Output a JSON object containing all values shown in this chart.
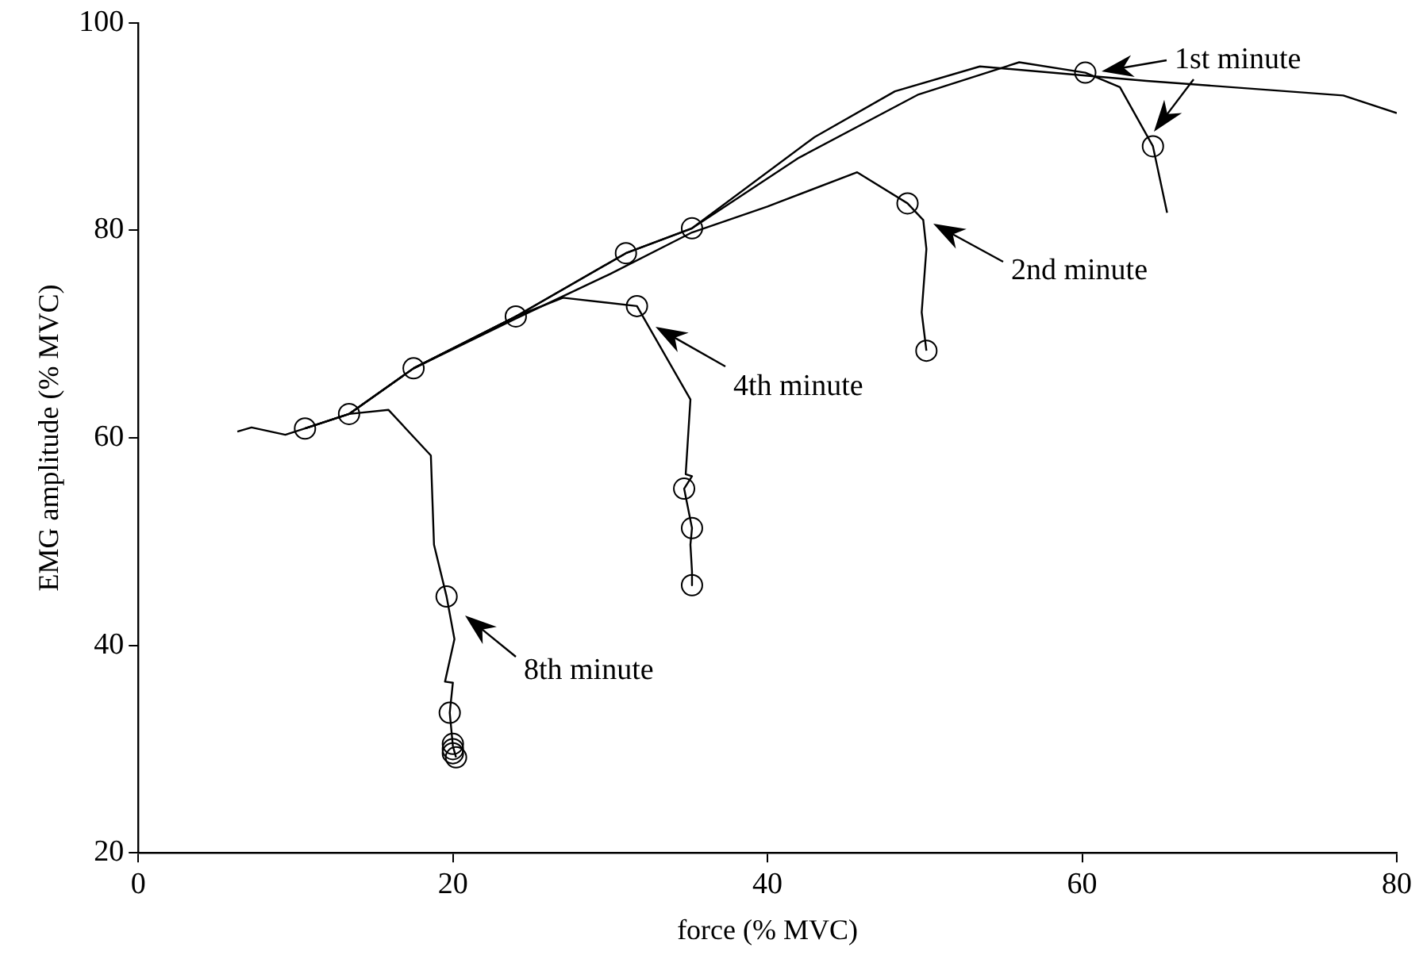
{
  "chart_data": {
    "type": "line",
    "xlabel": "force (% MVC)",
    "ylabel": "EMG amplitude (% MVC)",
    "xlim": [
      0,
      80
    ],
    "ylim": [
      20,
      100
    ],
    "xticks": [
      0,
      20,
      40,
      60,
      80
    ],
    "yticks": [
      20,
      40,
      60,
      80,
      100
    ],
    "grid": false,
    "legend": false,
    "series": [
      {
        "color": "#000000",
        "marker": "none",
        "x": [
          13.4,
          17.5,
          24,
          31,
          35.2,
          43,
          48.1,
          53.5,
          64.1,
          76.6,
          80
        ],
        "values": [
          62.3,
          66.7,
          71.7,
          77.8,
          80.2,
          89,
          93.4,
          95.8,
          94.4,
          93,
          91.3
        ]
      },
      {
        "color": "#000000",
        "marker": "none",
        "x": [
          17.5,
          24,
          31,
          35.2,
          42,
          49.6,
          56,
          60.2,
          62.4,
          64.5,
          65.4
        ],
        "values": [
          66.7,
          71.7,
          77.8,
          80.2,
          87,
          93.1,
          96.2,
          95.2,
          93.8,
          88.1,
          81.7
        ]
      },
      {
        "color": "#000000",
        "marker": "none",
        "x": [
          10.6,
          13.4,
          17.5,
          24,
          30,
          35.2,
          40,
          45.7,
          48.9,
          49.9,
          50.1,
          49.8,
          50.1
        ],
        "values": [
          60.9,
          62.3,
          66.7,
          71.5,
          75.8,
          79.8,
          82.3,
          85.6,
          82.6,
          81,
          78.2,
          72.1,
          68.4
        ]
      },
      {
        "color": "#000000",
        "marker": "none",
        "x": [
          10.6,
          13.4,
          17.5,
          24,
          27,
          31.7,
          35.1,
          34.8,
          35.2,
          34.7,
          35.2,
          35.1,
          35.2,
          35.2
        ],
        "values": [
          60.9,
          62.3,
          66.7,
          71.7,
          73.5,
          72.7,
          63.7,
          56.5,
          56.3,
          55.1,
          51.3,
          49.7,
          47.1,
          45.8
        ]
      },
      {
        "color": "#000000",
        "marker": "none",
        "x": [
          6.3,
          7.2,
          9.35,
          10.6,
          13.4,
          15.9,
          18.6,
          18.8,
          19.6,
          20.1,
          19.5,
          20,
          19.8,
          20,
          20.2
        ],
        "values": [
          60.6,
          61,
          60.3,
          60.9,
          62.3,
          62.7,
          58.3,
          49.7,
          44.7,
          40.6,
          36.5,
          36.4,
          33.5,
          30.3,
          29.2
        ]
      },
      {
        "type": "scatter",
        "color": "#000000",
        "marker": "circle",
        "x": [
          10.6,
          13.4,
          17.5,
          24,
          31,
          35.2,
          31.7,
          48.9,
          50.1,
          60.2,
          64.5,
          34.7,
          35.2,
          35.2,
          19.6,
          19.8,
          20,
          20,
          20,
          20.2
        ],
        "values": [
          60.9,
          62.3,
          66.7,
          71.7,
          77.8,
          80.2,
          72.7,
          82.6,
          68.4,
          95.2,
          88.1,
          55.1,
          51.3,
          45.8,
          44.7,
          33.5,
          30.5,
          30,
          29.6,
          29.2
        ]
      }
    ],
    "annotations": [
      "1st minute",
      "2nd minute",
      "4th minute",
      "8th minute"
    ]
  }
}
